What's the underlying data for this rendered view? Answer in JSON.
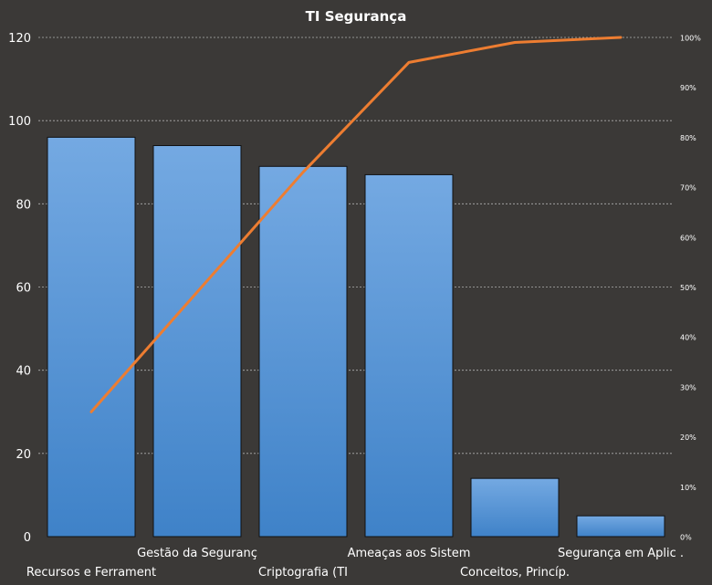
{
  "chart_data": {
    "type": "bar",
    "title": "TI Segurança",
    "categories": [
      "Recursos e Ferrament",
      "Gestão da Seguranç",
      "Criptografia (TI",
      "Ameaças aos Sistem",
      "Conceitos, Princíp.",
      "Segurança em Aplic ."
    ],
    "series": [
      {
        "type": "bar",
        "values": [
          96,
          94,
          89,
          87,
          14,
          5
        ]
      },
      {
        "type": "line",
        "axis": "right",
        "values": [
          25,
          49,
          73,
          95,
          99,
          100
        ]
      }
    ],
    "ylim": [
      0,
      120
    ],
    "yticks": [
      "0",
      "20",
      "40",
      "60",
      "80",
      "100",
      "120"
    ],
    "y2lim": [
      0,
      100
    ],
    "y2ticks": [
      "0%",
      "10%",
      "20%",
      "30%",
      "40%",
      "50%",
      "60%",
      "70%",
      "80%",
      "90%",
      "100%"
    ],
    "grid": true,
    "legend": "none",
    "colors": {
      "background": "#3b3937",
      "bar_top": "#74a9e2",
      "bar_bottom": "#3f82c8",
      "bar_edge": "#111111",
      "line": "#ed7d31",
      "grid": "#b0b0b0",
      "axis_text": "#ffffff",
      "title": "#ffffff"
    }
  }
}
